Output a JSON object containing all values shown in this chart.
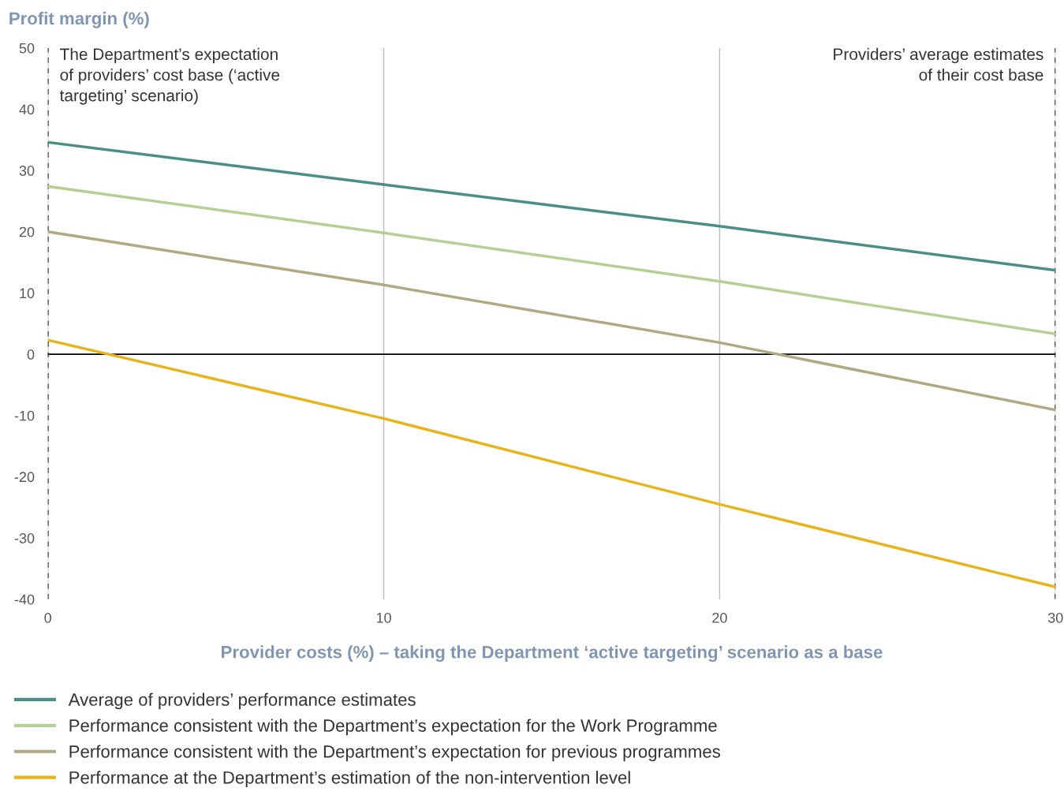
{
  "chart_data": {
    "type": "line",
    "ylabel": "Profit margin (%)",
    "xlabel": "Provider costs (%) – taking the Department ‘active targeting’ scenario as a base",
    "x": [
      0,
      10,
      20,
      30
    ],
    "series": [
      {
        "name": "Average of providers’ performance estimates",
        "color": "#4a8f85",
        "values": [
          34.6,
          27.7,
          20.9,
          13.7
        ]
      },
      {
        "name": "Performance consistent with the Department’s expectation for the Work Programme",
        "color": "#b5cf95",
        "values": [
          27.4,
          19.8,
          11.9,
          3.3
        ]
      },
      {
        "name": "Performance consistent with the Department’s expectation for previous programmes",
        "color": "#b0a982",
        "values": [
          20.0,
          11.3,
          1.9,
          -9.1
        ]
      },
      {
        "name": "Performance at the Department’s estimation of the non-intervention level",
        "color": "#e8b41c",
        "values": [
          2.3,
          -10.5,
          -24.5,
          -38.0
        ]
      }
    ],
    "xlim": [
      0,
      30
    ],
    "xticks": [
      0,
      10,
      20,
      30
    ],
    "ylim": [
      -40,
      50
    ],
    "yticks": [
      -40,
      -30,
      -20,
      -10,
      0,
      10,
      20,
      30,
      40,
      50
    ],
    "grid": "x",
    "legend": "bottom",
    "marker": "none",
    "line_style": "solid",
    "ref_lines": [
      {
        "axis": "x",
        "value": 0,
        "label": "The Department’s expectation\nof providers’ cost base (‘active\ntargeting’ scenario)",
        "color": "#000000",
        "line_style": "dashed"
      },
      {
        "axis": "x",
        "value": 30,
        "label": "Providers’ average estimates\nof their cost base",
        "color": "#000000",
        "line_style": "dashed"
      },
      {
        "axis": "y",
        "value": 0,
        "label": null,
        "color": "#000000",
        "line_style": "solid"
      }
    ]
  }
}
